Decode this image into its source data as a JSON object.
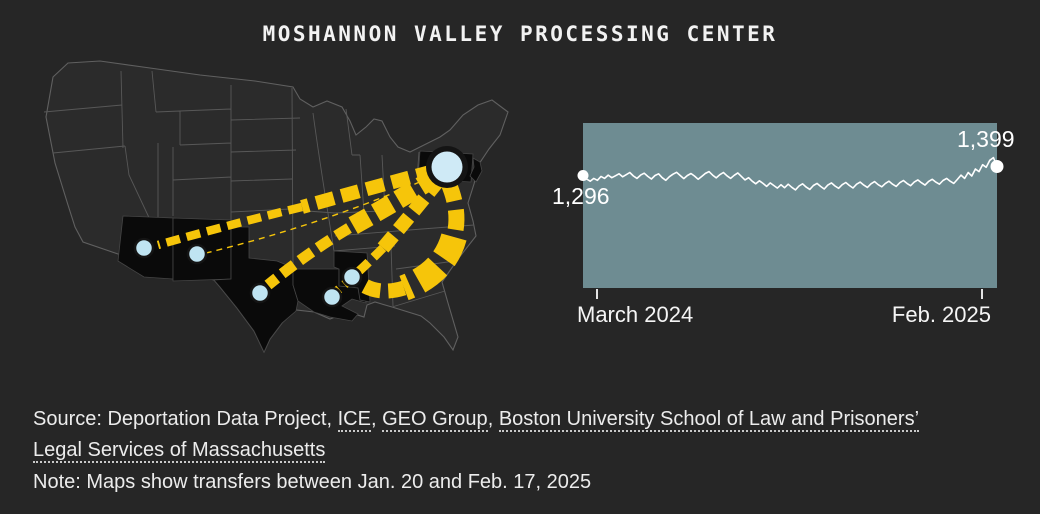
{
  "title": "MOSHANNON VALLEY PROCESSING CENTER",
  "colors": {
    "background": "#262626",
    "chart_panel": "#6e8c92",
    "flow_yellow": "#f6c50a",
    "dot_blue": "#bfe4f2",
    "origin_blue": "#cfeaf6",
    "highlight_state": "#0a0a0a",
    "state_fill": "#2b2b2b",
    "state_border": "#606060",
    "chart_line": "#ffffff",
    "text": "#ececec"
  },
  "map": {
    "origin_name": "Moshannon Valley Processing Center (Pennsylvania)",
    "highlighted_states": [
      "Arizona",
      "New Mexico",
      "Texas",
      "Louisiana",
      "Mississippi",
      "Pennsylvania",
      "New Jersey"
    ],
    "transfer_destinations": [
      "Arizona",
      "New Mexico",
      "Texas",
      "Louisiana",
      "Mississippi"
    ]
  },
  "chart_data": {
    "type": "line",
    "start_label": "1,296",
    "end_label": "1,399",
    "start_value": 1296,
    "end_value": 1399,
    "x_ticks": [
      "March 2024",
      "Feb. 2025"
    ],
    "ylim": [
      0,
      1900
    ],
    "grid": false,
    "legend": "none",
    "series": [
      {
        "name": "values",
        "values": [
          1296,
          1255,
          1230,
          1262,
          1240,
          1285,
          1262,
          1300,
          1270,
          1292,
          1315,
          1280,
          1305,
          1330,
          1290,
          1262,
          1300,
          1322,
          1285,
          1255,
          1295,
          1315,
          1270,
          1240,
          1282,
          1310,
          1332,
          1295,
          1260,
          1296,
          1318,
          1288,
          1252,
          1285,
          1320,
          1340,
          1300,
          1268,
          1305,
          1330,
          1292,
          1262,
          1298,
          1325,
          1285,
          1245,
          1270,
          1230,
          1200,
          1235,
          1205,
          1170,
          1210,
          1180,
          1150,
          1190,
          1155,
          1195,
          1160,
          1130,
          1175,
          1200,
          1162,
          1135,
          1180,
          1205,
          1170,
          1140,
          1185,
          1210,
          1175,
          1148,
          1190,
          1215,
          1180,
          1152,
          1195,
          1220,
          1185,
          1158,
          1200,
          1225,
          1190,
          1165,
          1205,
          1230,
          1195,
          1170,
          1212,
          1238,
          1205,
          1178,
          1220,
          1245,
          1212,
          1185,
          1228,
          1252,
          1220,
          1195,
          1238,
          1262,
          1230,
          1205,
          1250,
          1300,
          1262,
          1330,
          1290,
          1370,
          1340,
          1420,
          1390,
          1470,
          1502,
          1399
        ]
      }
    ]
  },
  "source": {
    "segments": {
      "0": {
        "text": "Source: Deportation Data Project, "
      },
      "1": {
        "text": "ICE"
      },
      "2": {
        "text": ", "
      },
      "3": {
        "text": "GEO Group"
      },
      "4": {
        "text": ", "
      },
      "5": {
        "text": "Boston University School of Law and Prisoners’"
      },
      "6": {
        "text": "Legal Services of Massachusetts"
      }
    }
  },
  "note": "Note: Maps show transfers between Jan. 20 and Feb. 17, 2025"
}
